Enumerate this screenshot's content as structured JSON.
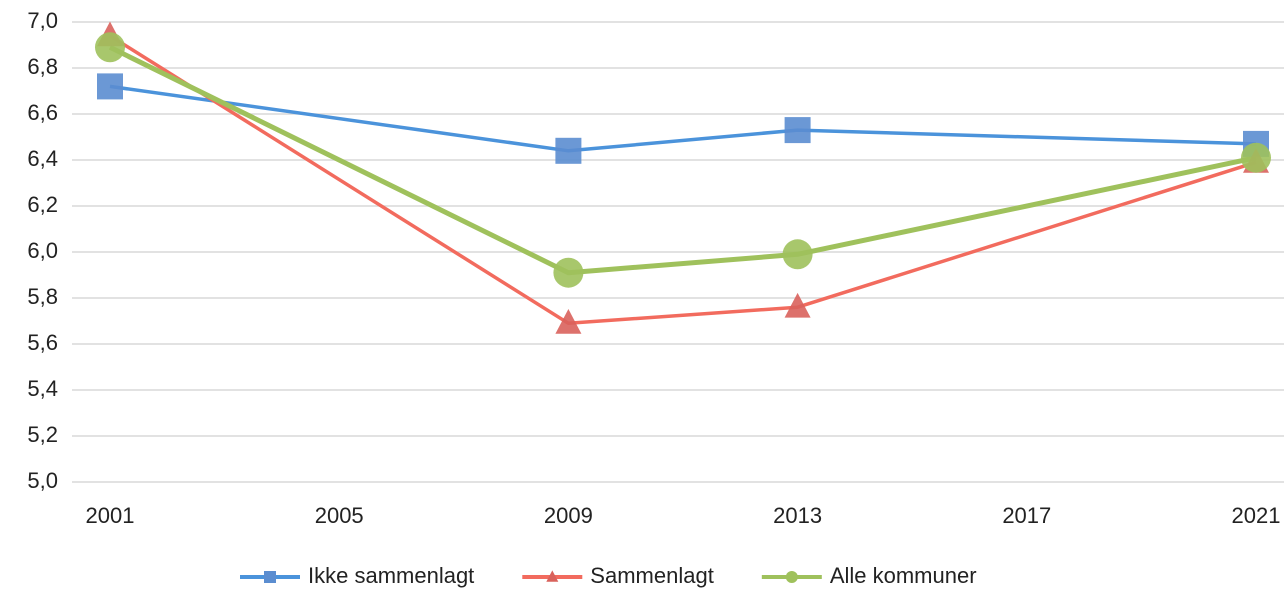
{
  "chart_data": {
    "type": "line",
    "x": [
      2001,
      2009,
      2013,
      2021
    ],
    "xlim": [
      2001,
      2021
    ],
    "xticks": [
      2001,
      2005,
      2009,
      2013,
      2017,
      2021
    ],
    "ylim": [
      5,
      7
    ],
    "yticks": [
      {
        "value": 5,
        "label": "5,0"
      },
      {
        "value": 5.2,
        "label": "5,2"
      },
      {
        "value": 5.4,
        "label": "5,4"
      },
      {
        "value": 5.6,
        "label": "5,6"
      },
      {
        "value": 5.8,
        "label": "5,8"
      },
      {
        "value": 6,
        "label": "6,0"
      },
      {
        "value": 6.2,
        "label": "6,2"
      },
      {
        "value": 6.4,
        "label": "6,4"
      },
      {
        "value": 6.6,
        "label": "6,6"
      },
      {
        "value": 6.8,
        "label": "6,8"
      },
      {
        "value": 7,
        "label": "7,0"
      }
    ],
    "grid": true,
    "legend": "bottom",
    "series": [
      {
        "name": "Ikke sammenlagt",
        "color": "#4b93db",
        "marker": "square",
        "values": [
          6.72,
          6.44,
          6.53,
          6.47
        ]
      },
      {
        "name": "Sammenlagt",
        "color": "#f26b5e",
        "marker": "triangle",
        "values": [
          6.94,
          5.69,
          5.76,
          6.39
        ]
      },
      {
        "name": "Alle kommuner",
        "color": "#9fc15c",
        "marker": "circle",
        "values": [
          6.89,
          5.91,
          5.99,
          6.41
        ]
      }
    ]
  }
}
